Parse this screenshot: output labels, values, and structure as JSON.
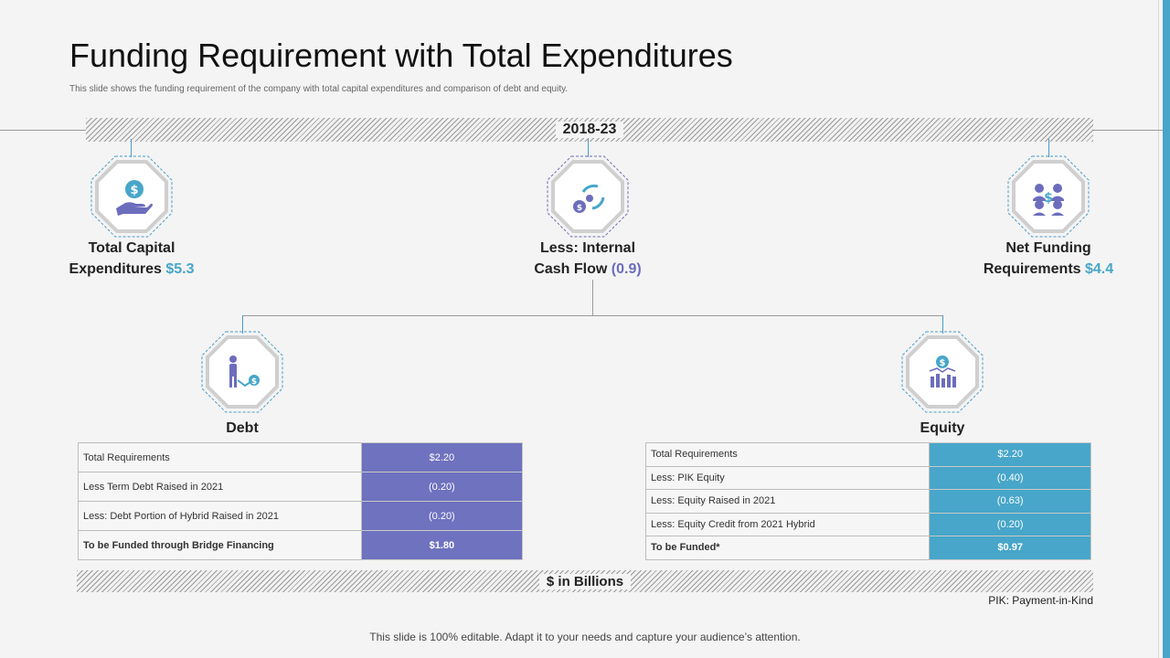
{
  "title": "Funding Requirement with Total Expenditures",
  "subtitle": "This slide shows the funding requirement of the company with total capital expenditures and comparison of debt and equity.",
  "period": "2018-23",
  "items": {
    "capex": {
      "label_1": "Total Capital",
      "label_2": "Expenditures",
      "value": "$5.3",
      "icon": "hand-dollar-icon"
    },
    "cashflow": {
      "label_1": "Less: Internal",
      "label_2": "Cash Flow",
      "value": "(0.9)",
      "icon": "cash-cycle-icon"
    },
    "net": {
      "label_1": "Net Funding",
      "label_2": "Requirements",
      "value": "$4.4",
      "icon": "people-dollar-icon"
    }
  },
  "debt": {
    "title": "Debt",
    "icon": "person-dollar-icon",
    "rows": [
      {
        "label": "Total Requirements",
        "value": "$2.20"
      },
      {
        "label": "Less Term Debt Raised in 2021",
        "value": "(0.20)"
      },
      {
        "label": "Less: Debt Portion of Hybrid Raised in 2021",
        "value": "(0.20)"
      },
      {
        "label": "To be Funded through Bridge Financing",
        "value": "$1.80"
      }
    ]
  },
  "equity": {
    "title": "Equity",
    "icon": "chart-dollar-icon",
    "rows": [
      {
        "label": "Total Requirements",
        "value": "$2.20"
      },
      {
        "label": "Less: PIK Equity",
        "value": "(0.40)"
      },
      {
        "label": "Less: Equity Raised in 2021",
        "value": "(0.63)"
      },
      {
        "label": "Less: Equity Credit from 2021 Hybrid",
        "value": "(0.20)"
      },
      {
        "label": "To be Funded*",
        "value": "$0.97"
      }
    ]
  },
  "units": "$ in Billions",
  "pik_note": "PIK: Payment-in-Kind",
  "footer": "This slide is 100% editable. Adapt it to your needs and capture your audience’s attention.",
  "colors": {
    "teal": "#47a6c9",
    "purple": "#6e72bf",
    "gray": "#9a9a9a"
  }
}
